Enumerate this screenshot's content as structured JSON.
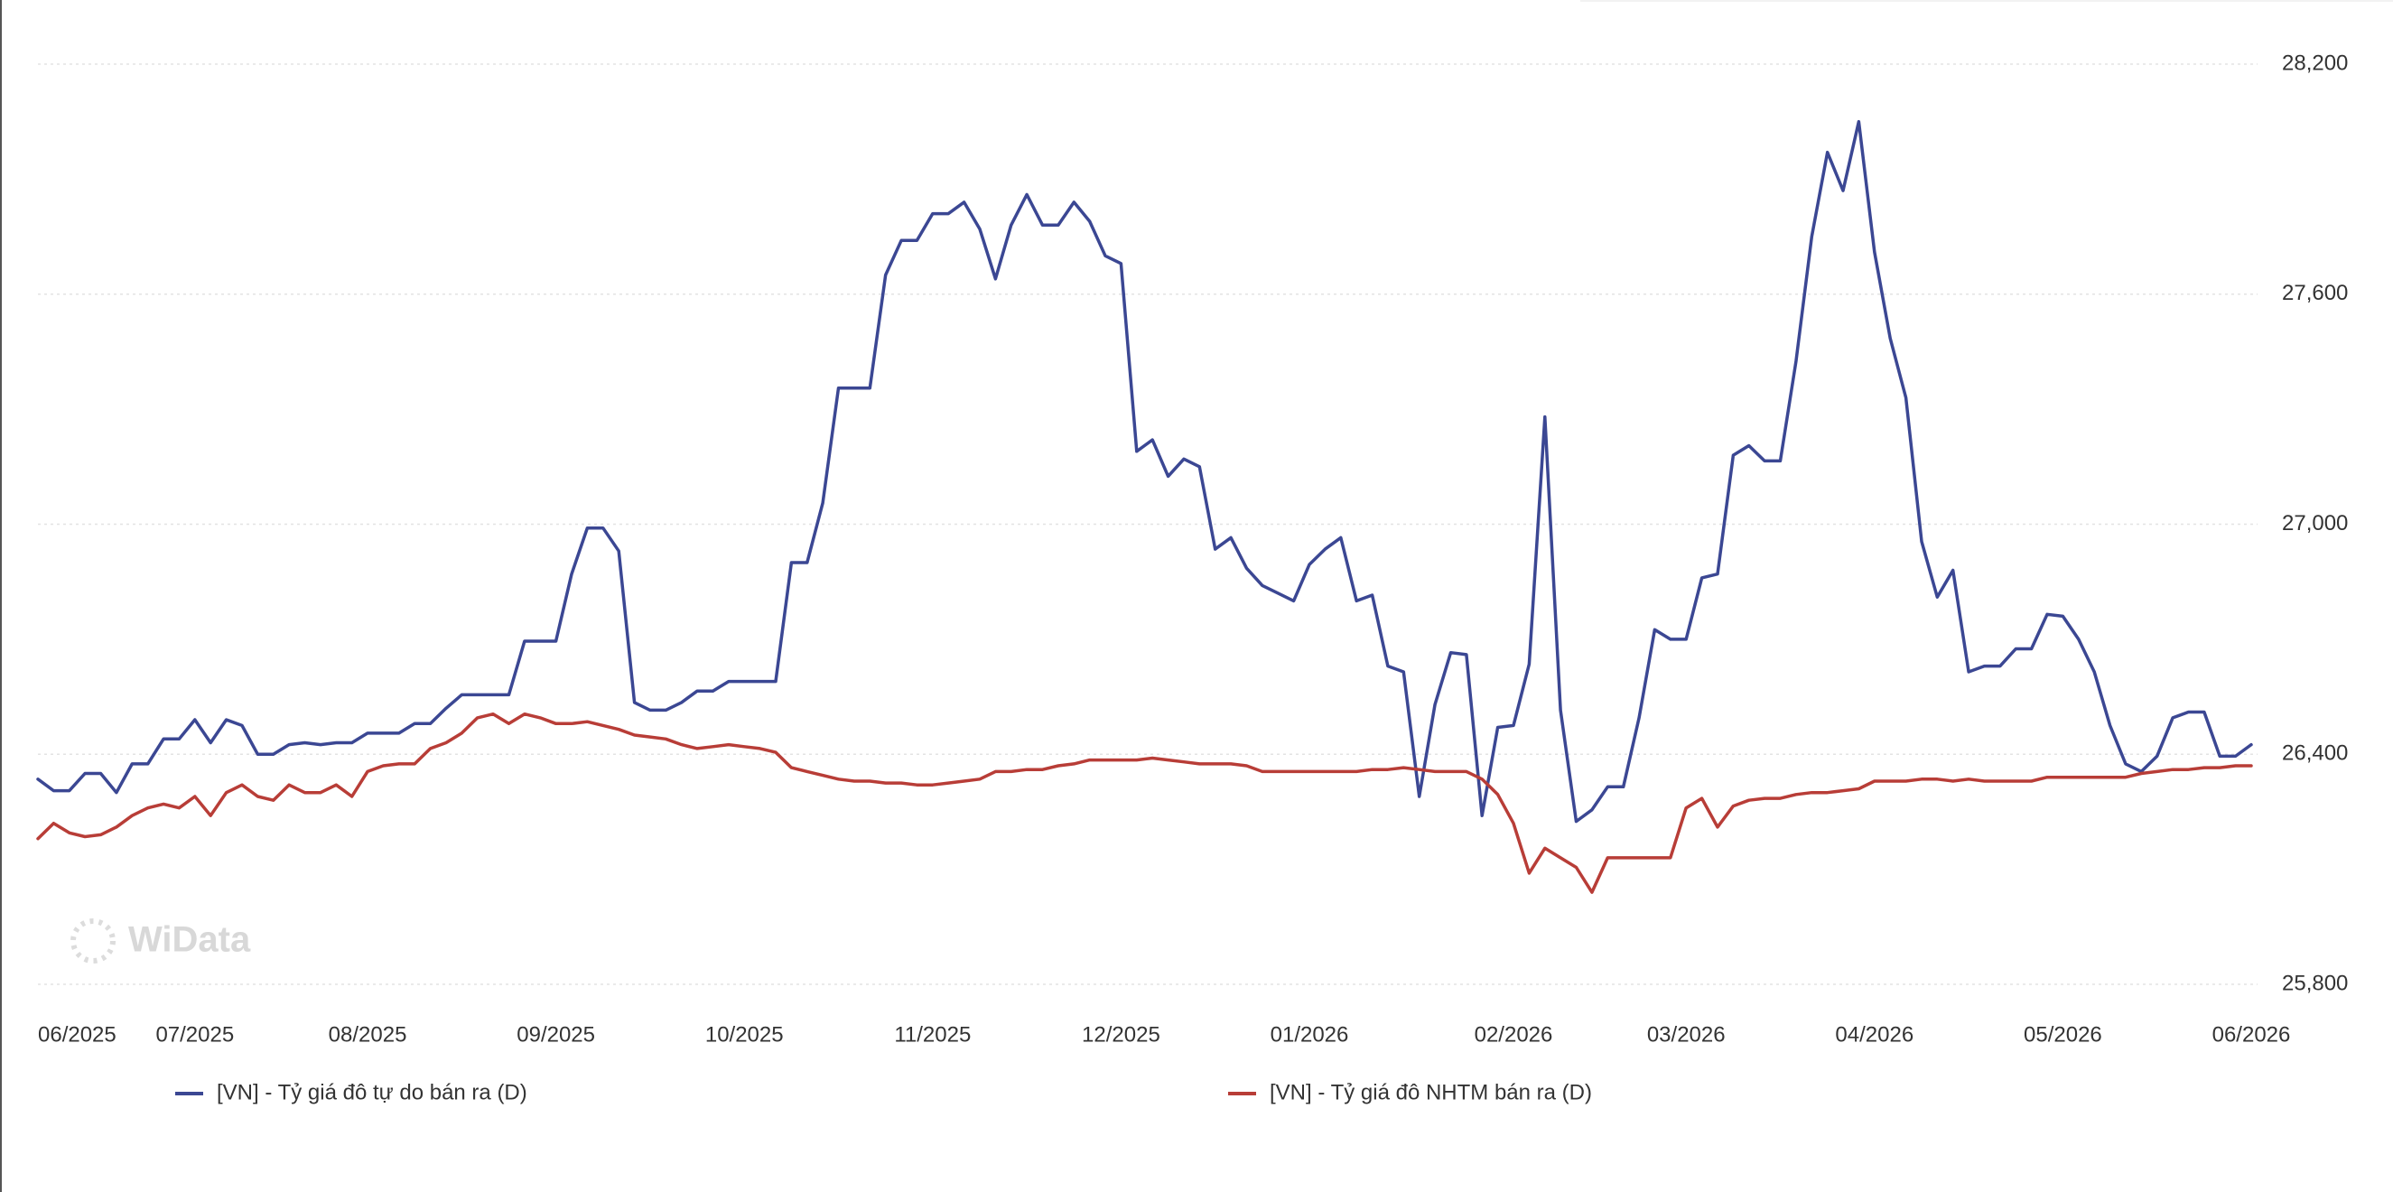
{
  "chart_data": {
    "type": "line",
    "watermark": "WiData",
    "categories": [
      "06/2025",
      null,
      null,
      null,
      null,
      null,
      null,
      null,
      null,
      null,
      "07/2025",
      null,
      null,
      null,
      null,
      null,
      null,
      null,
      null,
      null,
      null,
      "08/2025",
      null,
      null,
      null,
      null,
      null,
      null,
      null,
      null,
      null,
      null,
      null,
      "09/2025",
      null,
      null,
      null,
      null,
      null,
      null,
      null,
      null,
      null,
      null,
      null,
      "10/2025",
      null,
      null,
      null,
      null,
      null,
      null,
      null,
      null,
      null,
      null,
      null,
      "11/2025",
      null,
      null,
      null,
      null,
      null,
      null,
      null,
      null,
      null,
      null,
      null,
      "12/2025",
      null,
      null,
      null,
      null,
      null,
      null,
      null,
      null,
      null,
      null,
      null,
      "01/2026",
      null,
      null,
      null,
      null,
      null,
      null,
      null,
      null,
      null,
      null,
      null,
      null,
      "02/2026",
      null,
      null,
      null,
      null,
      null,
      null,
      null,
      null,
      null,
      null,
      "03/2026",
      null,
      null,
      null,
      null,
      null,
      null,
      null,
      null,
      null,
      null,
      null,
      "04/2026",
      null,
      null,
      null,
      null,
      null,
      null,
      null,
      null,
      null,
      null,
      null,
      "05/2026",
      null,
      null,
      null,
      null,
      null,
      null,
      null,
      null,
      null,
      null,
      null,
      "06/2026"
    ],
    "series": [
      {
        "name": "[VN] - Tỷ giá đô tự do bán ra (D)",
        "color": "#3b4793",
        "values": [
          26335,
          26305,
          26305,
          26350,
          26350,
          26300,
          26375,
          26375,
          26440,
          26440,
          26490,
          26430,
          26490,
          26475,
          26400,
          26400,
          26425,
          26430,
          26425,
          26430,
          26430,
          26455,
          26455,
          26455,
          26480,
          26480,
          26520,
          26555,
          26555,
          26555,
          26555,
          26695,
          26695,
          26695,
          26870,
          26990,
          26990,
          26930,
          26535,
          26515,
          26515,
          26535,
          26565,
          26565,
          26590,
          26590,
          26590,
          26590,
          26900,
          26900,
          27055,
          27355,
          27355,
          27355,
          27650,
          27740,
          27740,
          27810,
          27810,
          27840,
          27770,
          27640,
          27780,
          27860,
          27780,
          27780,
          27840,
          27790,
          27700,
          27680,
          27190,
          27220,
          27125,
          27170,
          27150,
          26935,
          26965,
          26885,
          26840,
          26820,
          26800,
          26895,
          26935,
          26965,
          26800,
          26815,
          26630,
          26615,
          26290,
          26530,
          26665,
          26660,
          26240,
          26470,
          26475,
          26635,
          27280,
          26515,
          26225,
          26255,
          26315,
          26315,
          26495,
          26725,
          26700,
          26700,
          26860,
          26870,
          27180,
          27205,
          27165,
          27165,
          27425,
          27750,
          27970,
          27870,
          28050,
          27710,
          27485,
          27330,
          26955,
          26810,
          26880,
          26615,
          26630,
          26630,
          26675,
          26675,
          26765,
          26760,
          26700,
          26615,
          26475,
          26375,
          26355,
          26395,
          26495,
          26510,
          26510,
          26395,
          26395,
          26425
        ]
      },
      {
        "name": "[VN] - Tỷ giá đô NHTM bán ra (D)",
        "color": "#b83d37",
        "values": [
          26180,
          26220,
          26195,
          26185,
          26190,
          26210,
          26240,
          26260,
          26270,
          26260,
          26290,
          26240,
          26300,
          26320,
          26290,
          26280,
          26320,
          26300,
          26300,
          26320,
          26290,
          26355,
          26370,
          26375,
          26375,
          26415,
          26430,
          26455,
          26495,
          26505,
          26480,
          26505,
          26495,
          26480,
          26480,
          26485,
          26475,
          26465,
          26450,
          26445,
          26440,
          26425,
          26415,
          26420,
          26425,
          26420,
          26415,
          26405,
          26365,
          26355,
          26345,
          26335,
          26330,
          26330,
          26325,
          26325,
          26320,
          26320,
          26325,
          26330,
          26335,
          26355,
          26355,
          26360,
          26360,
          26370,
          26375,
          26385,
          26385,
          26385,
          26385,
          26390,
          26385,
          26380,
          26375,
          26375,
          26375,
          26370,
          26355,
          26355,
          26355,
          26355,
          26355,
          26355,
          26355,
          26360,
          26360,
          26365,
          26360,
          26355,
          26355,
          26355,
          26335,
          26295,
          26220,
          26090,
          26155,
          26130,
          26105,
          26040,
          26130,
          26130,
          26130,
          26130,
          26130,
          26260,
          26285,
          26210,
          26265,
          26280,
          26285,
          26285,
          26295,
          26300,
          26300,
          26305,
          26310,
          26330,
          26330,
          26330,
          26335,
          26335,
          26330,
          26335,
          26330,
          26330,
          26330,
          26330,
          26340,
          26340,
          26340,
          26340,
          26340,
          26340,
          26350,
          26355,
          26360,
          26360,
          26365,
          26365,
          26370,
          26370
        ]
      }
    ],
    "ylim": [
      25800,
      28200
    ],
    "yticks": [
      {
        "value": 25800,
        "label": "25,800"
      },
      {
        "value": 26400,
        "label": "26,400"
      },
      {
        "value": 27000,
        "label": "27,000"
      },
      {
        "value": 27600,
        "label": "27,600"
      },
      {
        "value": 28200,
        "label": "28,200"
      }
    ],
    "grid": true,
    "legend": "bottom"
  }
}
